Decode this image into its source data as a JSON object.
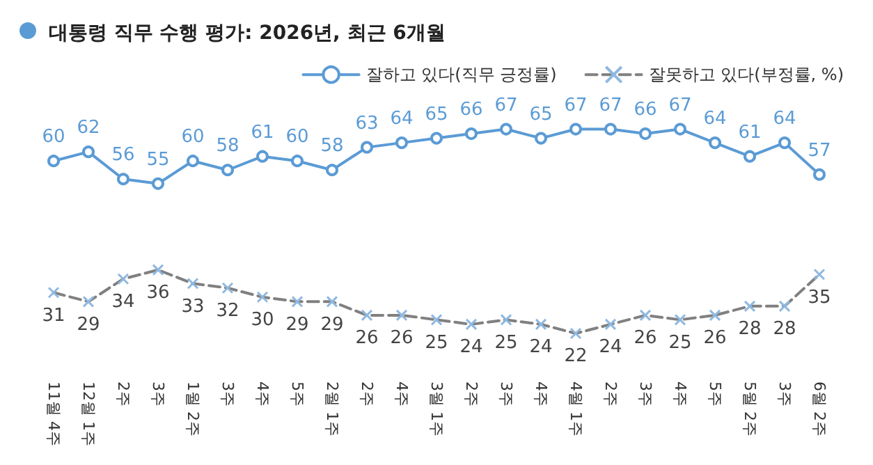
{
  "chart_data": {
    "type": "line",
    "title": "대통령 직무 수행 평가: 2026년, 최근 6개월",
    "categories": [
      "11월 4주",
      "12월 1주",
      "2주",
      "3주",
      "1월 2주",
      "3주",
      "4주",
      "5주",
      "2월 1주",
      "2주",
      "4주",
      "3월 1주",
      "2주",
      "3주",
      "4주",
      "4월 1주",
      "2주",
      "3주",
      "4주",
      "5주",
      "5월 2주",
      "3주",
      "6월 2주"
    ],
    "series": [
      {
        "name": "잘하고 있다(직무 긍정률)",
        "color": "#5b9bd5",
        "marker": "circle",
        "line_style": "solid",
        "values": [
          60,
          62,
          56,
          55,
          60,
          58,
          61,
          60,
          58,
          63,
          64,
          65,
          66,
          67,
          65,
          67,
          67,
          66,
          67,
          64,
          61,
          64,
          57
        ]
      },
      {
        "name": "잘못하고 있다(부정률, %)",
        "color": "#808080",
        "marker": "cross",
        "line_style": "dashed",
        "values": [
          31,
          29,
          34,
          36,
          33,
          32,
          30,
          29,
          29,
          26,
          26,
          25,
          24,
          25,
          24,
          22,
          24,
          26,
          25,
          26,
          28,
          28,
          35
        ]
      }
    ],
    "data_labels": true,
    "legend": "top right",
    "grid": false,
    "tick_labels": "x"
  }
}
